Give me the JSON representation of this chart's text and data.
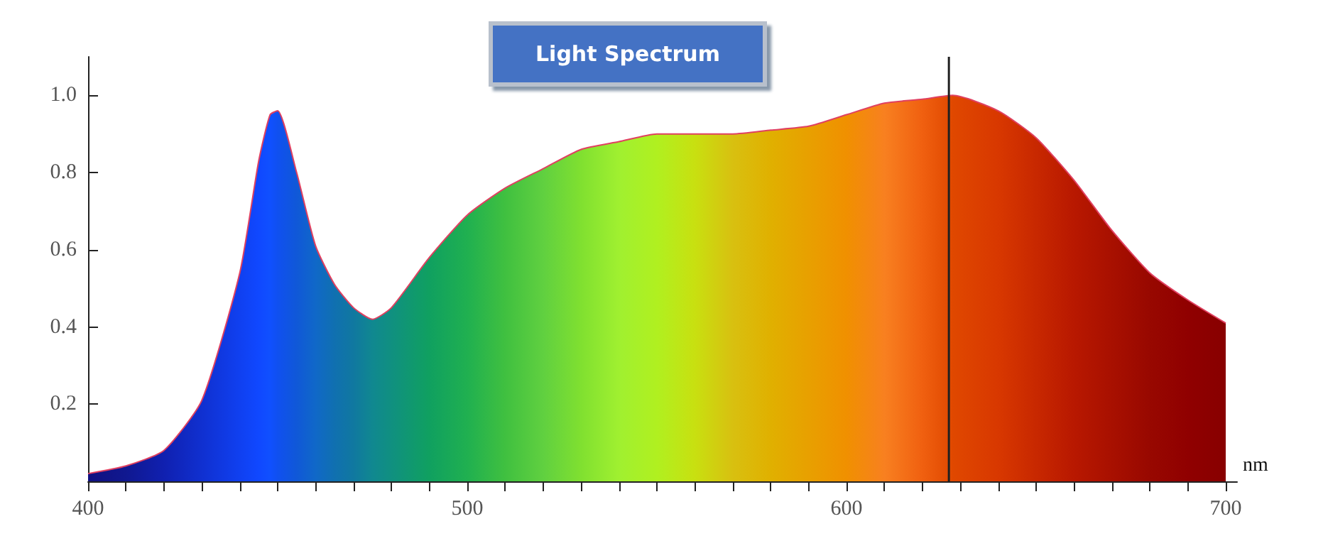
{
  "chart_data": {
    "type": "area",
    "title": "Light Spectrum",
    "xlabel": "nm",
    "x": [
      400,
      410,
      420,
      430,
      440,
      445,
      448,
      450,
      455,
      460,
      465,
      470,
      475,
      480,
      490,
      500,
      510,
      520,
      530,
      540,
      550,
      560,
      570,
      580,
      590,
      600,
      610,
      620,
      628,
      640,
      650,
      660,
      670,
      680,
      690,
      700
    ],
    "series": [
      {
        "color": "#e04060",
        "values": [
          0.02,
          0.04,
          0.08,
          0.21,
          0.54,
          0.83,
          0.95,
          0.96,
          0.8,
          0.61,
          0.51,
          0.45,
          0.42,
          0.45,
          0.58,
          0.69,
          0.76,
          0.81,
          0.86,
          0.88,
          0.9,
          0.9,
          0.9,
          0.91,
          0.92,
          0.95,
          0.98,
          0.99,
          1.0,
          0.96,
          0.89,
          0.78,
          0.65,
          0.54,
          0.47,
          0.41
        ],
        "colors": [
          "#101080",
          "#101890",
          "#1020b0",
          "#1030d0",
          "#1040f0",
          "#1048ff",
          "#1050ff",
          "#1050f0",
          "#1058d8",
          "#1068c8",
          "#1070b0",
          "#1078a0",
          "#108890",
          "#109080",
          "#10a060",
          "#20b050",
          "#40c040",
          "#60d040",
          "#80e030",
          "#a0f030",
          "#b0f020",
          "#c8e010",
          "#d8c010",
          "#e0b000",
          "#e8a000",
          "#f09000",
          "#f88020",
          "#f06010",
          "#e04800",
          "#d83800",
          "#c82800",
          "#b81800",
          "#a81000",
          "#980800",
          "#900000",
          "#880000"
        ]
      }
    ],
    "xlim": [
      400,
      703
    ],
    "xticks": [
      400,
      500,
      600,
      700
    ],
    "ylim": [
      0,
      1.1
    ],
    "yticks": [
      0.2,
      0.4,
      0.6,
      0.8,
      {
        "value": 1,
        "label": "1.0"
      }
    ],
    "ref_lines": [
      {
        "axis": "x",
        "value": 627,
        "color": "#202020"
      }
    ],
    "grid": false,
    "marker": "none"
  }
}
